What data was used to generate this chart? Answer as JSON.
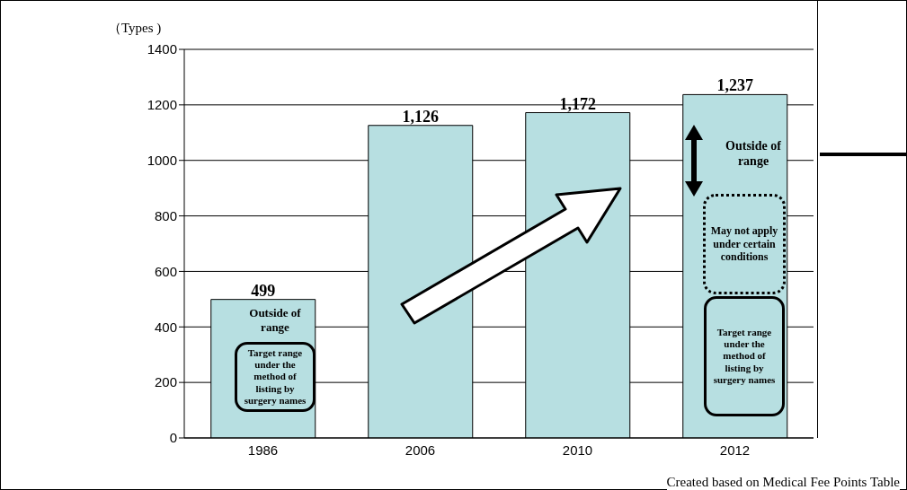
{
  "chart_data": {
    "type": "bar",
    "ylabel": "（Types )",
    "categories": [
      "1986",
      "2006",
      "2010",
      "2012"
    ],
    "values": [
      499,
      1126,
      1172,
      1237
    ],
    "value_labels": [
      "499",
      "1,126",
      "1,172",
      "1,237"
    ],
    "color": "#b7dfe1",
    "ylim": [
      0,
      1400
    ],
    "yticks": [
      0,
      200,
      400,
      600,
      800,
      1000,
      1200,
      1400
    ],
    "grid": "y",
    "annotations": [
      "Outside of range",
      "Target range under the method of listing by surgery names",
      "Outside of range",
      "May not apply under certain conditions",
      "Target range under the method of listing by surgery names",
      "Created based on Medical Fee Points Table"
    ]
  }
}
